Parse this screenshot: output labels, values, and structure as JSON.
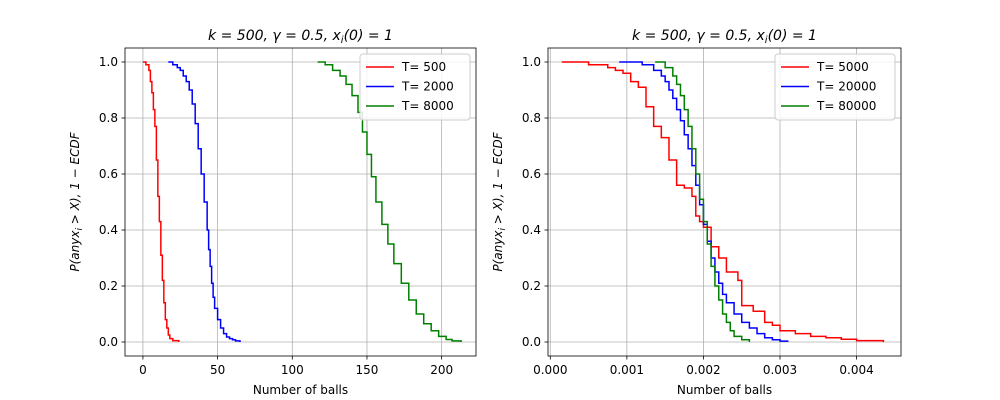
{
  "chart_data": [
    {
      "type": "line",
      "title": "k = 500, γ = 0.5, x_i(0) = 1",
      "xlabel": "Number of balls",
      "ylabel": "P(any x_i > X), 1 − ECDF",
      "xlim": [
        -12,
        223
      ],
      "ylim": [
        -0.05,
        1.05
      ],
      "xticks": [
        0,
        50,
        100,
        150,
        200
      ],
      "yticks": [
        0.0,
        0.2,
        0.4,
        0.6,
        0.8,
        1.0
      ],
      "xtick_labels": [
        "0",
        "50",
        "100",
        "150",
        "200"
      ],
      "ytick_labels": [
        "0.0",
        "0.2",
        "0.4",
        "0.6",
        "0.8",
        "1.0"
      ],
      "grid": true,
      "legend_position": "top-right",
      "series": [
        {
          "name": "T= 500",
          "color": "#ff0000",
          "x": [
            0,
            2,
            4,
            5,
            6,
            7,
            8,
            9,
            10,
            11,
            12,
            13,
            14,
            15,
            16,
            17,
            18,
            20,
            24
          ],
          "y": [
            1.0,
            0.99,
            0.97,
            0.93,
            0.89,
            0.83,
            0.77,
            0.65,
            0.52,
            0.43,
            0.31,
            0.22,
            0.14,
            0.08,
            0.05,
            0.025,
            0.012,
            0.005,
            0.0
          ]
        },
        {
          "name": "T= 2000",
          "color": "#0000ff",
          "x": [
            17,
            20,
            23,
            25,
            27,
            29,
            31,
            33,
            35,
            37,
            39,
            41,
            43,
            44,
            45,
            46,
            47,
            48,
            50,
            52,
            54,
            56,
            58,
            60,
            62,
            65
          ],
          "y": [
            1.0,
            0.99,
            0.98,
            0.97,
            0.95,
            0.93,
            0.9,
            0.85,
            0.78,
            0.69,
            0.6,
            0.5,
            0.4,
            0.33,
            0.27,
            0.21,
            0.16,
            0.12,
            0.08,
            0.05,
            0.03,
            0.018,
            0.012,
            0.008,
            0.004,
            0.0
          ]
        },
        {
          "name": "T= 8000",
          "color": "#008000",
          "x": [
            117,
            122,
            127,
            132,
            136,
            140,
            144,
            147,
            150,
            153,
            156,
            160,
            164,
            168,
            173,
            178,
            183,
            188,
            193,
            198,
            203,
            207,
            213
          ],
          "y": [
            1.0,
            0.99,
            0.97,
            0.95,
            0.92,
            0.88,
            0.82,
            0.75,
            0.67,
            0.59,
            0.5,
            0.42,
            0.35,
            0.28,
            0.21,
            0.15,
            0.1,
            0.065,
            0.04,
            0.02,
            0.009,
            0.004,
            0.0
          ]
        }
      ]
    },
    {
      "type": "line",
      "title": "k = 500, γ = 0.5, x_i(0) = 1",
      "xlabel": "Number of balls",
      "ylabel": "P(any x_i > X), 1 − ECDF",
      "xlim": [
        -3e-05,
        0.00458
      ],
      "ylim": [
        -0.05,
        1.05
      ],
      "xticks": [
        0.0,
        0.001,
        0.002,
        0.003,
        0.004
      ],
      "yticks": [
        0.0,
        0.2,
        0.4,
        0.6,
        0.8,
        1.0
      ],
      "xtick_labels": [
        "0.000",
        "0.001",
        "0.002",
        "0.003",
        "0.004"
      ],
      "ytick_labels": [
        "0.0",
        "0.2",
        "0.4",
        "0.6",
        "0.8",
        "1.0"
      ],
      "grid": true,
      "legend_position": "top-right",
      "series": [
        {
          "name": "T= 5000",
          "color": "#ff0000",
          "x": [
            0.00015,
            0.0005,
            0.00075,
            0.00085,
            0.00095,
            0.00105,
            0.00115,
            0.00125,
            0.00135,
            0.00145,
            0.00155,
            0.00165,
            0.00175,
            0.00185,
            0.0019,
            0.00195,
            0.002,
            0.0021,
            0.0022,
            0.0023,
            0.00245,
            0.0025,
            0.00265,
            0.0028,
            0.0029,
            0.003,
            0.0032,
            0.0034,
            0.0036,
            0.0038,
            0.004,
            0.00435
          ],
          "y": [
            1.0,
            0.99,
            0.98,
            0.97,
            0.96,
            0.93,
            0.91,
            0.84,
            0.77,
            0.73,
            0.65,
            0.56,
            0.55,
            0.52,
            0.45,
            0.43,
            0.41,
            0.34,
            0.3,
            0.25,
            0.22,
            0.13,
            0.11,
            0.07,
            0.06,
            0.04,
            0.03,
            0.02,
            0.015,
            0.01,
            0.005,
            0.0
          ]
        },
        {
          "name": "T= 20000",
          "color": "#0000ff",
          "x": [
            0.0009,
            0.0012,
            0.00135,
            0.00145,
            0.0015,
            0.00155,
            0.0016,
            0.00165,
            0.0017,
            0.00175,
            0.0018,
            0.00185,
            0.0019,
            0.00195,
            0.002,
            0.00205,
            0.0021,
            0.00215,
            0.0022,
            0.00225,
            0.0023,
            0.0024,
            0.0025,
            0.0026,
            0.0027,
            0.0028,
            0.0029,
            0.003,
            0.0031
          ],
          "y": [
            1.0,
            0.99,
            0.97,
            0.95,
            0.93,
            0.9,
            0.87,
            0.83,
            0.79,
            0.74,
            0.69,
            0.63,
            0.56,
            0.49,
            0.42,
            0.36,
            0.3,
            0.25,
            0.21,
            0.17,
            0.14,
            0.1,
            0.07,
            0.05,
            0.03,
            0.015,
            0.008,
            0.003,
            0.0
          ]
        },
        {
          "name": "T= 80000",
          "color": "#008000",
          "x": [
            0.00137,
            0.0015,
            0.0016,
            0.00165,
            0.0017,
            0.00175,
            0.0018,
            0.00185,
            0.0019,
            0.00195,
            0.002,
            0.00205,
            0.0021,
            0.00215,
            0.0022,
            0.00225,
            0.0023,
            0.00235,
            0.0024,
            0.0025,
            0.0026
          ],
          "y": [
            1.0,
            0.98,
            0.95,
            0.92,
            0.88,
            0.83,
            0.77,
            0.69,
            0.6,
            0.51,
            0.43,
            0.35,
            0.27,
            0.2,
            0.15,
            0.1,
            0.07,
            0.04,
            0.02,
            0.008,
            0.0
          ]
        }
      ]
    }
  ]
}
